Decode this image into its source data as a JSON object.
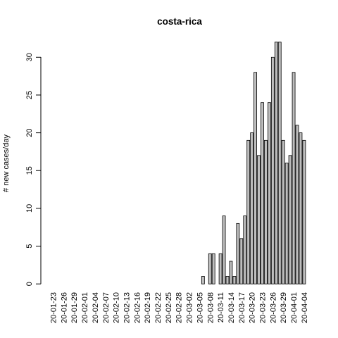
{
  "chart_data": {
    "type": "bar",
    "title": "costa-rica",
    "xlabel": "",
    "ylabel": "# new cases/day",
    "ylim": [
      0,
      32
    ],
    "yticks": [
      0,
      5,
      10,
      15,
      20,
      25,
      30
    ],
    "categories": [
      "20-01-23",
      "20-01-24",
      "20-01-25",
      "20-01-26",
      "20-01-27",
      "20-01-28",
      "20-01-29",
      "20-01-30",
      "20-01-31",
      "20-02-01",
      "20-02-02",
      "20-02-03",
      "20-02-04",
      "20-02-05",
      "20-02-06",
      "20-02-07",
      "20-02-08",
      "20-02-09",
      "20-02-10",
      "20-02-11",
      "20-02-12",
      "20-02-13",
      "20-02-14",
      "20-02-15",
      "20-02-16",
      "20-02-17",
      "20-02-18",
      "20-02-19",
      "20-02-20",
      "20-02-21",
      "20-02-22",
      "20-02-23",
      "20-02-24",
      "20-02-25",
      "20-02-26",
      "20-02-27",
      "20-02-28",
      "20-02-29",
      "20-03-01",
      "20-03-02",
      "20-03-03",
      "20-03-04",
      "20-03-05",
      "20-03-06",
      "20-03-07",
      "20-03-08",
      "20-03-09",
      "20-03-10",
      "20-03-11",
      "20-03-12",
      "20-03-13",
      "20-03-14",
      "20-03-15",
      "20-03-16",
      "20-03-17",
      "20-03-18",
      "20-03-19",
      "20-03-20",
      "20-03-21",
      "20-03-22",
      "20-03-23",
      "20-03-24",
      "20-03-25",
      "20-03-26",
      "20-03-27",
      "20-03-28",
      "20-03-29",
      "20-03-30",
      "20-03-31",
      "20-04-01",
      "20-04-02",
      "20-04-03",
      "20-04-04"
    ],
    "xtick_labels": [
      "20-01-23",
      "20-01-26",
      "20-01-29",
      "20-02-01",
      "20-02-04",
      "20-02-07",
      "20-02-10",
      "20-02-13",
      "20-02-16",
      "20-02-19",
      "20-02-22",
      "20-02-25",
      "20-02-28",
      "20-03-02",
      "20-03-05",
      "20-03-08",
      "20-03-11",
      "20-03-14",
      "20-03-17",
      "20-03-20",
      "20-03-23",
      "20-03-26",
      "20-03-29",
      "20-04-01",
      "20-04-04"
    ],
    "values": [
      0,
      0,
      0,
      0,
      0,
      0,
      0,
      0,
      0,
      0,
      0,
      0,
      0,
      0,
      0,
      0,
      0,
      0,
      0,
      0,
      0,
      0,
      0,
      0,
      0,
      0,
      0,
      0,
      0,
      0,
      0,
      0,
      0,
      0,
      0,
      0,
      0,
      0,
      0,
      0,
      0,
      0,
      0,
      1,
      0,
      4,
      4,
      0,
      4,
      9,
      1,
      3,
      1,
      8,
      6,
      9,
      19,
      20,
      28,
      17,
      24,
      19,
      24,
      30,
      32,
      32,
      19,
      16,
      17,
      28,
      21,
      20,
      19
    ],
    "colors": {
      "bar_fill": "#bebebe",
      "bar_stroke": "#000000"
    }
  }
}
